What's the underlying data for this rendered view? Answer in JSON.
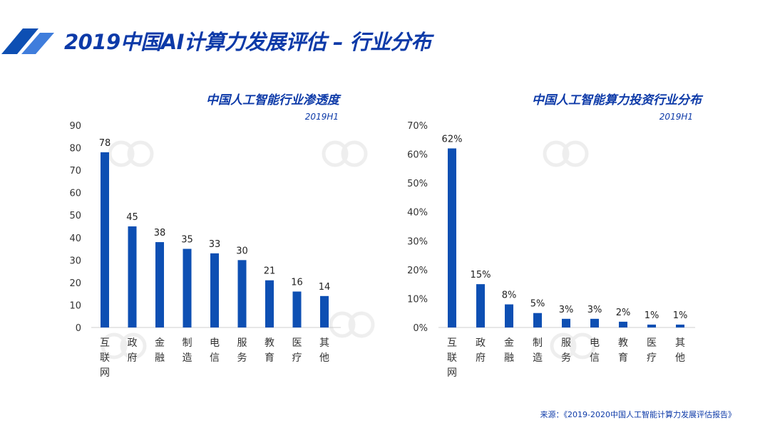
{
  "page": {
    "title": "2019中国AI计算力发展评估 – 行业分布",
    "source": "来源：《2019-2020中国人工智能计算力发展评估报告》"
  },
  "colors": {
    "bar": "#0d4fb3",
    "title": "#0d3aa8",
    "axis": "#cfcfcf"
  },
  "chart_data": [
    {
      "type": "bar",
      "title": "中国人工智能行业渗透度",
      "subtitle": "2019H1",
      "categories": [
        "互联网",
        "政府",
        "金融",
        "制造",
        "电信",
        "服务",
        "教育",
        "医疗",
        "其他"
      ],
      "values": [
        78,
        45,
        38,
        35,
        33,
        30,
        21,
        16,
        14
      ],
      "data_labels": [
        "78",
        "45",
        "38",
        "35",
        "33",
        "30",
        "21",
        "16",
        "14"
      ],
      "ylim": [
        0,
        90
      ],
      "yticks": [
        "0",
        "10",
        "20",
        "30",
        "40",
        "50",
        "60",
        "70",
        "80",
        "90"
      ],
      "grid": false,
      "xlabel": "",
      "ylabel": ""
    },
    {
      "type": "bar",
      "title": "中国人工智能算力投资行业分布",
      "subtitle": "2019H1",
      "categories": [
        "互联网",
        "政府",
        "金融",
        "制造",
        "服务",
        "电信",
        "教育",
        "医疗",
        "其他"
      ],
      "values": [
        62,
        15,
        8,
        5,
        3,
        3,
        2,
        1,
        1
      ],
      "data_labels": [
        "62%",
        "15%",
        "8%",
        "5%",
        "3%",
        "3%",
        "2%",
        "1%",
        "1%"
      ],
      "ylim": [
        0,
        70
      ],
      "yticks": [
        "0%",
        "10%",
        "20%",
        "30%",
        "40%",
        "50%",
        "60%",
        "70%"
      ],
      "grid": false,
      "xlabel": "",
      "ylabel": ""
    }
  ]
}
